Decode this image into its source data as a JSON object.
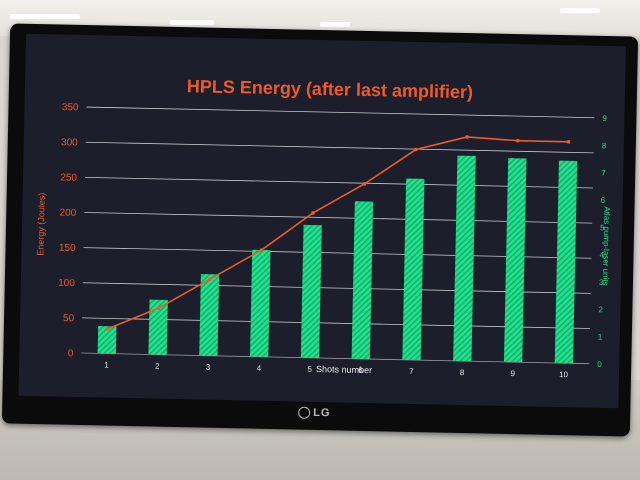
{
  "screen_brand": "LG",
  "chart_data": {
    "type": "bar",
    "title": "HPLS Energy (after last amplifier)",
    "xlabel": "Shots number",
    "ylabel": "Energy (Joules)",
    "y2label": "Atlas pump-laser units",
    "categories": [
      "1",
      "2",
      "3",
      "4",
      "5",
      "6",
      "7",
      "8",
      "9",
      "10"
    ],
    "ylim": [
      0,
      350
    ],
    "yticks": [
      0,
      50,
      100,
      150,
      200,
      250,
      300,
      350
    ],
    "y2lim": [
      0,
      9
    ],
    "y2ticks": [
      0,
      1,
      2,
      3,
      4,
      5,
      6,
      7,
      8,
      9
    ],
    "grid": true,
    "series": [
      {
        "kind": "bar",
        "axis": "y",
        "color": "#1ee08a",
        "values": [
          39,
          78,
          116,
          152,
          189,
          224,
          258,
          292,
          290,
          288
        ]
      },
      {
        "kind": "line",
        "axis": "y2",
        "color": "#ef5a26",
        "values": [
          0.9,
          1.7,
          2.8,
          3.9,
          5.3,
          6.4,
          7.7,
          8.2,
          8.1,
          8.1
        ]
      }
    ],
    "colors": {
      "title": "#ef5a26",
      "left_axis": "#ef5a26",
      "right_axis": "#1ee08a",
      "text": "#e6e6e6"
    }
  }
}
